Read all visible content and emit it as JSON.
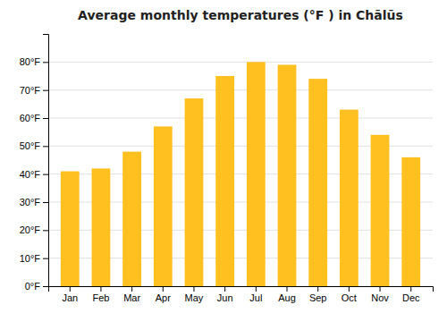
{
  "chart_data": {
    "type": "bar",
    "title": "Average monthly temperatures (°F ) in Chālūs",
    "categories": [
      "Jan",
      "Feb",
      "Mar",
      "Apr",
      "May",
      "Jun",
      "Jul",
      "Aug",
      "Sep",
      "Oct",
      "Nov",
      "Dec"
    ],
    "values": [
      41,
      42,
      48,
      57,
      67,
      75,
      80,
      79,
      74,
      63,
      54,
      46
    ],
    "color": "#FFC020",
    "ylim": [
      0,
      90
    ],
    "yticks": [
      {
        "value": 0,
        "label": "0°F"
      },
      {
        "value": 10,
        "label": "10°F"
      },
      {
        "value": 20,
        "label": "20°F"
      },
      {
        "value": 30,
        "label": "30°F"
      },
      {
        "value": 40,
        "label": "40°F"
      },
      {
        "value": 50,
        "label": "50°F"
      },
      {
        "value": 60,
        "label": "60°F"
      },
      {
        "value": 70,
        "label": "70°F"
      },
      {
        "value": 80,
        "label": "80°F"
      }
    ],
    "grid": true
  }
}
